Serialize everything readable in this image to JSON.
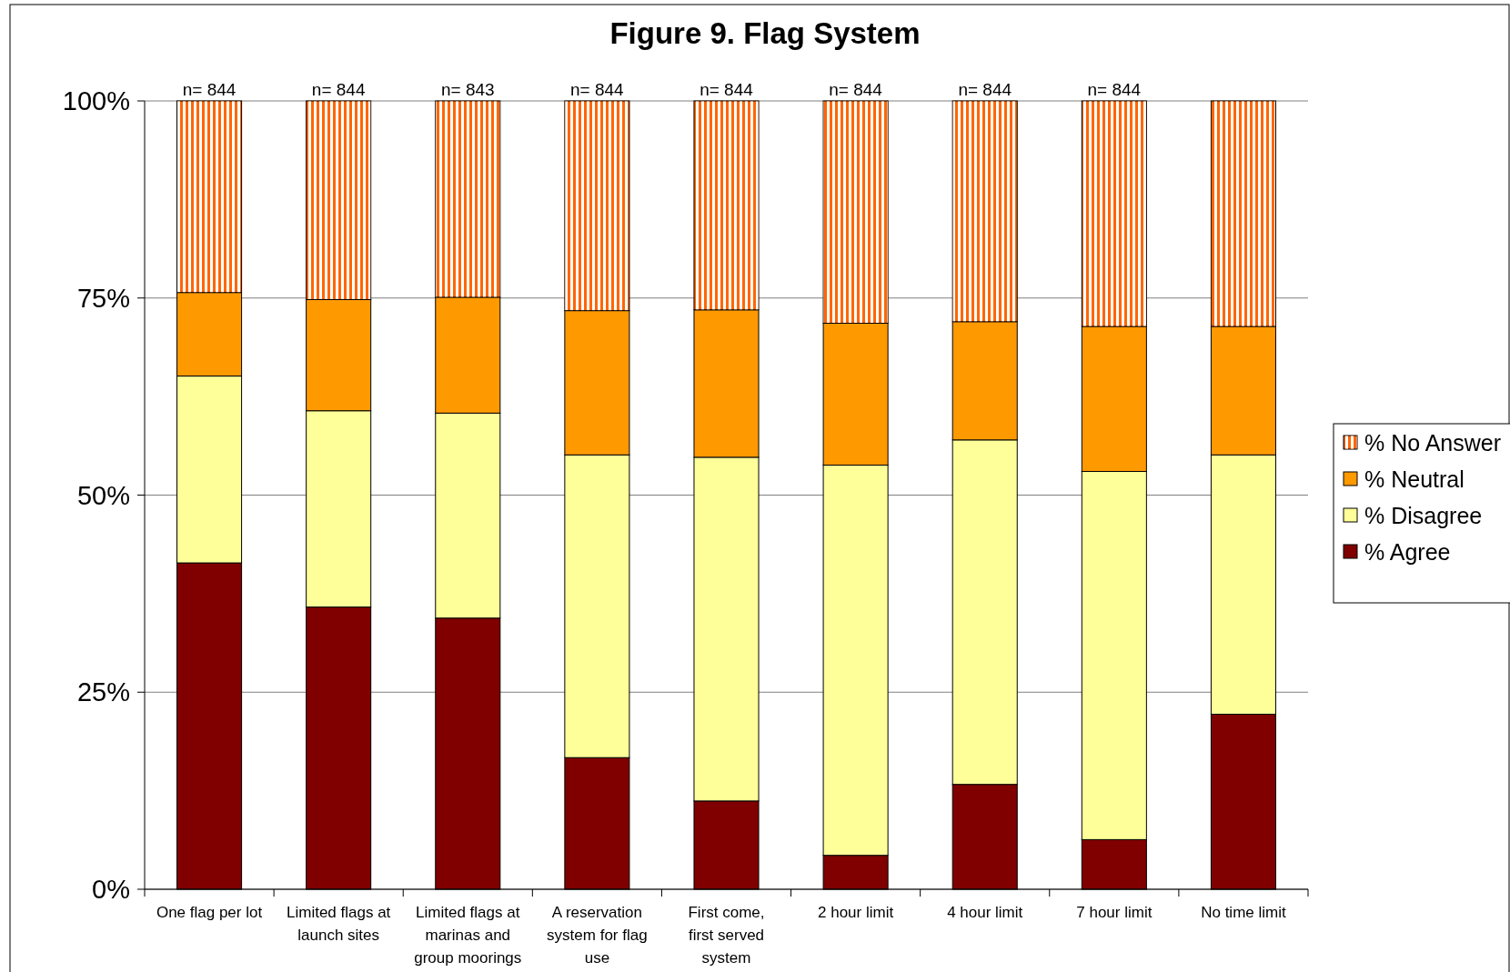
{
  "chart_data": {
    "type": "bar",
    "title": "Figure 9. Flag System",
    "stacked": true,
    "categories": [
      "One flag per lot",
      "Limited flags at launch sites",
      "Limited flags at marinas and group moorings",
      "A reservation system for flag use",
      "First come, first served system",
      "2 hour limit",
      "4 hour limit",
      "7 hour limit",
      "No time limit"
    ],
    "series": [
      {
        "name": "% Agree",
        "color": "#800000",
        "values": [
          41.4,
          35.8,
          34.4,
          16.7,
          11.2,
          4.3,
          13.3,
          6.3,
          22.2
        ]
      },
      {
        "name": "% Disagree",
        "color": "#ffff99",
        "values": [
          23.7,
          24.9,
          26.0,
          38.4,
          43.6,
          49.5,
          43.7,
          46.7,
          32.9
        ]
      },
      {
        "name": "% Neutral",
        "color": "#ff9900",
        "values": [
          10.6,
          14.1,
          14.7,
          18.3,
          18.7,
          18.0,
          15.0,
          18.4,
          16.3
        ]
      },
      {
        "name": "% No Answer",
        "color": "#ff6600",
        "values": [
          24.3,
          25.2,
          24.9,
          26.6,
          26.5,
          28.2,
          28.0,
          28.6,
          28.6
        ]
      }
    ],
    "ylim": [
      0,
      100
    ],
    "yticks": [
      {
        "value": 0,
        "label": "0%"
      },
      {
        "value": 25,
        "label": "25%"
      },
      {
        "value": 50,
        "label": "50%"
      },
      {
        "value": 75,
        "label": "75%"
      },
      {
        "value": 100,
        "label": "100%"
      }
    ],
    "grid": "y",
    "legend": "right",
    "annotations": [
      {
        "text": "n= 844",
        "x": "One flag per lot",
        "y": 100
      },
      {
        "text": "n= 844",
        "x": "Limited flags at launch sites",
        "y": 100
      },
      {
        "text": "n= 843",
        "x": "Limited flags at marinas and group moorings",
        "y": 100
      },
      {
        "text": "n= 844",
        "x": "A reservation system for flag use",
        "y": 100
      },
      {
        "text": "n= 844",
        "x": "First come, first served system",
        "y": 100
      },
      {
        "text": "n= 844",
        "x": "2 hour limit",
        "y": 100
      },
      {
        "text": "n= 844",
        "x": "4 hour limit",
        "y": 100
      },
      {
        "text": "n= 844",
        "x": "7 hour limit",
        "y": 100
      }
    ]
  }
}
